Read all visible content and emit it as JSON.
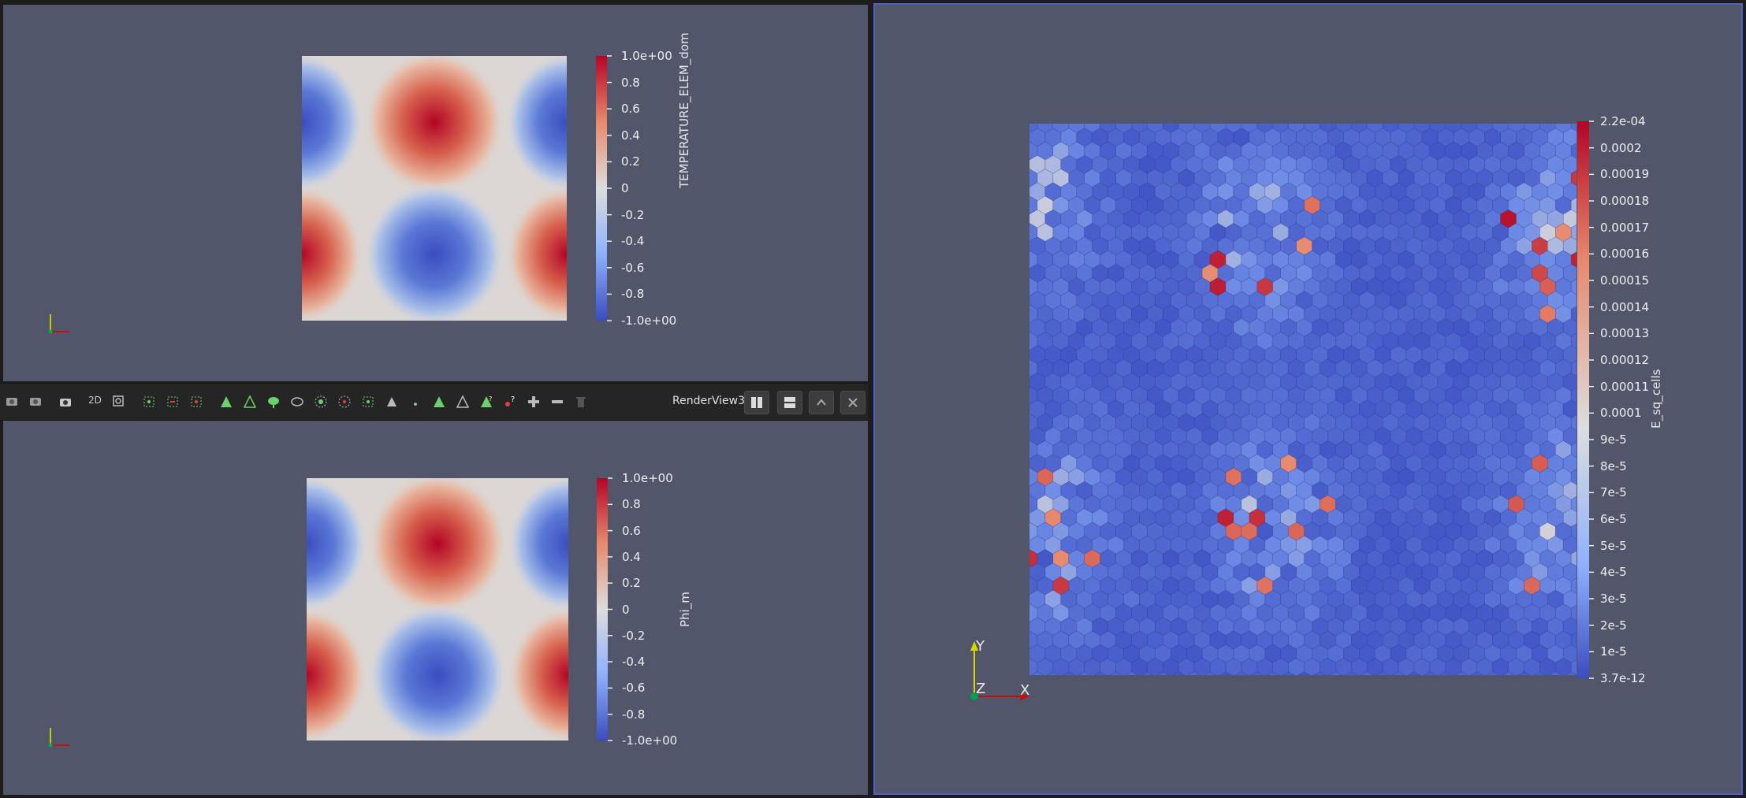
{
  "toolbar": {
    "view_label": "RenderView3",
    "text_2d": "2D",
    "icons": [
      "reset-camera-icon",
      "reset-camera-closest-icon",
      "capture-screenshot-icon",
      "toggle-2d-3d",
      "zoom-to-box-icon",
      "select-cells-on-icon",
      "select-points-on-icon",
      "select-cells-through-icon",
      "select-points-through-icon",
      "interactive-select-icon",
      "grow-selection-icon",
      "shrink-selection-icon",
      "clear-selection-icon",
      "split-horizontal-icon",
      "split-vertical-icon",
      "maximize-icon",
      "close-icon"
    ]
  },
  "views": {
    "top_left": {
      "colorbar": {
        "title": "TEMPERATURE_ELEM_dom",
        "labels": [
          "1.0e+00",
          "0.8",
          "0.6",
          "0.4",
          "0.2",
          "0",
          "-0.2",
          "-0.4",
          "-0.6",
          "-0.8",
          "-1.0e+00"
        ]
      }
    },
    "bottom_left": {
      "colorbar": {
        "title": "Phi_m",
        "labels": [
          "1.0e+00",
          "0.8",
          "0.6",
          "0.4",
          "0.2",
          "0",
          "-0.2",
          "-0.4",
          "-0.6",
          "-0.8",
          "-1.0e+00"
        ]
      }
    },
    "right": {
      "colorbar": {
        "title": "E_sq_cells",
        "labels": [
          "2.2e-04",
          "0.0002",
          "0.00019",
          "0.00018",
          "0.00017",
          "0.00016",
          "0.00015",
          "0.00014",
          "0.00013",
          "0.00012",
          "0.00011",
          "0.0001",
          "9e-5",
          "8e-5",
          "7e-5",
          "6e-5",
          "5e-5",
          "4e-5",
          "3e-5",
          "2e-5",
          "1e-5",
          "3.7e-12"
        ]
      },
      "axes": {
        "x": "X",
        "y": "Y",
        "z": "Z"
      }
    }
  },
  "colors": {
    "background": "#52566a",
    "cool": "#3b4cc0",
    "warm": "#b40426",
    "neutral": "#dddddd"
  }
}
